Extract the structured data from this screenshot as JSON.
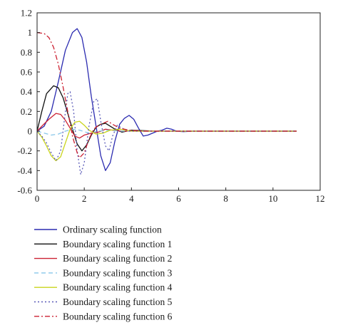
{
  "chart_data": {
    "type": "line",
    "xlim": [
      0,
      12
    ],
    "ylim": [
      -0.6,
      1.2
    ],
    "x_ticks": [
      0,
      2,
      4,
      6,
      8,
      10,
      12
    ],
    "y_ticks": [
      -0.6,
      -0.4,
      -0.2,
      0,
      0.2,
      0.4,
      0.6,
      0.8,
      1,
      1.2
    ],
    "x_tick_labels": [
      "0",
      "2",
      "4",
      "6",
      "8",
      "10",
      "12"
    ],
    "y_tick_labels": [
      "-0.6",
      "-0.4",
      "-0.2",
      "0",
      "0.2",
      "0.4",
      "0.6",
      "0.8",
      "1",
      "1.2"
    ],
    "grid": false,
    "legend_position": "below",
    "series": [
      {
        "name": "Ordinary scaling function",
        "color": "#2b2bb0",
        "dash": "solid",
        "points": [
          [
            0,
            0
          ],
          [
            0.3,
            0.05
          ],
          [
            0.6,
            0.2
          ],
          [
            0.9,
            0.5
          ],
          [
            1.2,
            0.82
          ],
          [
            1.5,
            1.0
          ],
          [
            1.7,
            1.04
          ],
          [
            1.9,
            0.95
          ],
          [
            2.1,
            0.7
          ],
          [
            2.3,
            0.35
          ],
          [
            2.5,
            0.05
          ],
          [
            2.7,
            -0.25
          ],
          [
            2.9,
            -0.4
          ],
          [
            3.1,
            -0.32
          ],
          [
            3.3,
            -0.1
          ],
          [
            3.5,
            0.07
          ],
          [
            3.7,
            0.13
          ],
          [
            3.9,
            0.16
          ],
          [
            4.1,
            0.12
          ],
          [
            4.3,
            0.03
          ],
          [
            4.5,
            -0.05
          ],
          [
            4.7,
            -0.04
          ],
          [
            4.9,
            -0.02
          ],
          [
            5.1,
            0
          ],
          [
            5.3,
            0.01
          ],
          [
            5.5,
            0.03
          ],
          [
            5.7,
            0.02
          ],
          [
            5.9,
            0
          ],
          [
            6.2,
            -0.005
          ],
          [
            6.6,
            0
          ],
          [
            11,
            0
          ]
        ]
      },
      {
        "name": "Boundary scaling function 1",
        "color": "#111111",
        "dash": "solid",
        "points": [
          [
            0,
            0
          ],
          [
            0.2,
            0.2
          ],
          [
            0.4,
            0.38
          ],
          [
            0.7,
            0.46
          ],
          [
            0.9,
            0.44
          ],
          [
            1.1,
            0.34
          ],
          [
            1.3,
            0.18
          ],
          [
            1.5,
            0.02
          ],
          [
            1.7,
            -0.13
          ],
          [
            1.9,
            -0.2
          ],
          [
            2.1,
            -0.14
          ],
          [
            2.3,
            -0.04
          ],
          [
            2.5,
            0.04
          ],
          [
            2.7,
            0.07
          ],
          [
            2.9,
            0.08
          ],
          [
            3.1,
            0.05
          ],
          [
            3.3,
            0.02
          ],
          [
            3.6,
            -0.01
          ],
          [
            4.0,
            0.01
          ],
          [
            4.5,
            0.005
          ],
          [
            5,
            0
          ],
          [
            11,
            0
          ]
        ]
      },
      {
        "name": "Boundary scaling function 2",
        "color": "#cc2233",
        "dash": "solid",
        "points": [
          [
            0,
            0
          ],
          [
            0.2,
            0.05
          ],
          [
            0.5,
            0.12
          ],
          [
            0.8,
            0.18
          ],
          [
            1.0,
            0.17
          ],
          [
            1.2,
            0.11
          ],
          [
            1.4,
            0.03
          ],
          [
            1.6,
            -0.05
          ],
          [
            1.8,
            -0.07
          ],
          [
            2.0,
            -0.04
          ],
          [
            2.3,
            -0.02
          ],
          [
            2.6,
            -0.01
          ],
          [
            2.9,
            0.02
          ],
          [
            3.2,
            0.01
          ],
          [
            3.6,
            0
          ],
          [
            11,
            0
          ]
        ]
      },
      {
        "name": "Boundary scaling function 3",
        "color": "#87c7ea",
        "dash": "6,4",
        "points": [
          [
            0,
            0
          ],
          [
            0.3,
            -0.02
          ],
          [
            0.6,
            -0.04
          ],
          [
            0.9,
            -0.03
          ],
          [
            1.2,
            0
          ],
          [
            1.5,
            0.02
          ],
          [
            1.8,
            0.01
          ],
          [
            2.2,
            -0.02
          ],
          [
            2.6,
            0
          ],
          [
            3.0,
            0.01
          ],
          [
            3.5,
            0
          ],
          [
            11,
            0
          ]
        ]
      },
      {
        "name": "Boundary scaling function 4",
        "color": "#c9d41c",
        "dash": "solid",
        "points": [
          [
            0,
            0
          ],
          [
            0.2,
            -0.06
          ],
          [
            0.4,
            -0.15
          ],
          [
            0.6,
            -0.25
          ],
          [
            0.8,
            -0.3
          ],
          [
            1.0,
            -0.26
          ],
          [
            1.2,
            -0.12
          ],
          [
            1.4,
            0.02
          ],
          [
            1.6,
            0.09
          ],
          [
            1.8,
            0.1
          ],
          [
            2.0,
            0.06
          ],
          [
            2.2,
            0.01
          ],
          [
            2.5,
            -0.03
          ],
          [
            2.8,
            -0.02
          ],
          [
            3.1,
            0.01
          ],
          [
            3.5,
            0.02
          ],
          [
            4.0,
            0
          ],
          [
            11,
            0
          ]
        ]
      },
      {
        "name": "Boundary scaling function 5",
        "color": "#5a5ab8",
        "dash": "2,3",
        "points": [
          [
            0,
            0
          ],
          [
            0.2,
            -0.05
          ],
          [
            0.4,
            -0.12
          ],
          [
            0.6,
            -0.22
          ],
          [
            0.8,
            -0.3
          ],
          [
            1.0,
            -0.2
          ],
          [
            1.15,
            0.1
          ],
          [
            1.3,
            0.38
          ],
          [
            1.4,
            0.4
          ],
          [
            1.55,
            0.2
          ],
          [
            1.7,
            -0.2
          ],
          [
            1.85,
            -0.44
          ],
          [
            2.0,
            -0.32
          ],
          [
            2.2,
            0.05
          ],
          [
            2.4,
            0.3
          ],
          [
            2.55,
            0.33
          ],
          [
            2.7,
            0.1
          ],
          [
            2.9,
            -0.15
          ],
          [
            3.05,
            -0.2
          ],
          [
            3.2,
            -0.05
          ],
          [
            3.4,
            0.06
          ],
          [
            3.6,
            0.03
          ],
          [
            3.9,
            0
          ],
          [
            11,
            0
          ]
        ]
      },
      {
        "name": "Boundary scaling function 6",
        "color": "#cc2233",
        "dash": "7,3,2,3",
        "points": [
          [
            0,
            1.0
          ],
          [
            0.3,
            0.99
          ],
          [
            0.5,
            0.95
          ],
          [
            0.7,
            0.85
          ],
          [
            0.9,
            0.68
          ],
          [
            1.1,
            0.45
          ],
          [
            1.3,
            0.2
          ],
          [
            1.5,
            -0.05
          ],
          [
            1.7,
            -0.22
          ],
          [
            1.8,
            -0.27
          ],
          [
            2.0,
            -0.22
          ],
          [
            2.2,
            -0.08
          ],
          [
            2.4,
            0.02
          ],
          [
            2.6,
            0.06
          ],
          [
            2.8,
            0.08
          ],
          [
            3.0,
            0.1
          ],
          [
            3.2,
            0.07
          ],
          [
            3.5,
            0.03
          ],
          [
            3.9,
            0.01
          ],
          [
            4.5,
            0
          ],
          [
            11,
            0
          ]
        ]
      }
    ]
  }
}
